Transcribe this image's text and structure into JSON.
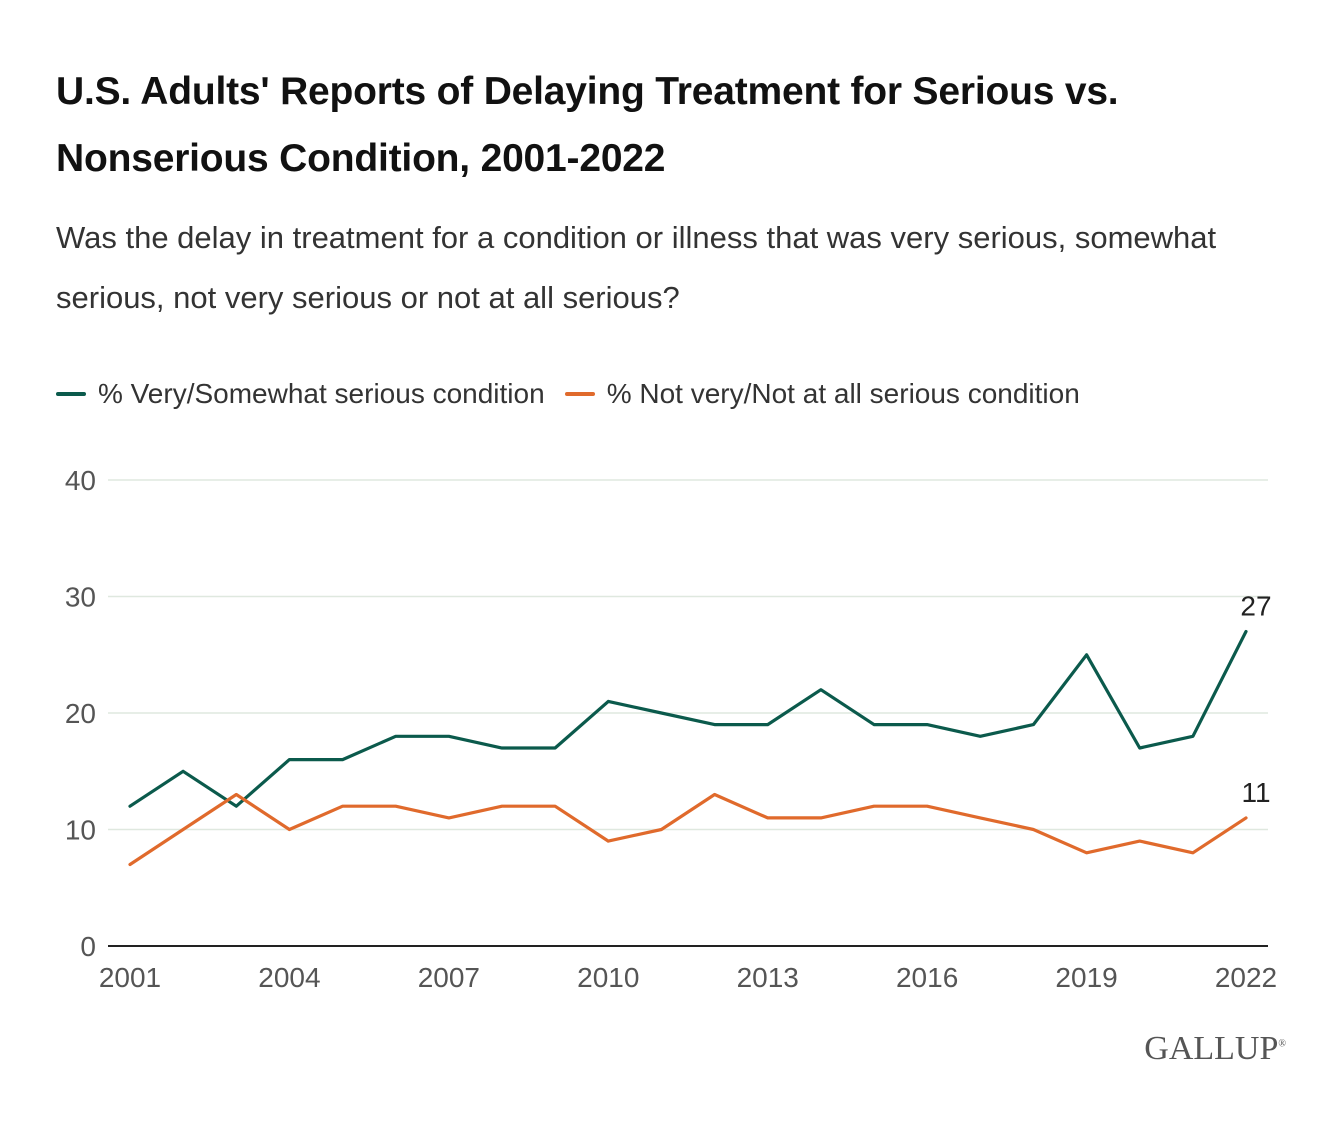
{
  "title": "U.S. Adults' Reports of Delaying Treatment for Serious vs. Nonserious Condition, 2001-2022",
  "subtitle": "Was the delay in treatment for a condition or illness that was very serious, somewhat serious, not very serious or not at all serious?",
  "logo": "GALLUP",
  "colors": {
    "serious": "#0b5a4c",
    "nonserious": "#e06a2c",
    "grid": "#dfe8df",
    "axis": "#222222",
    "tick": "#555555"
  },
  "chart_data": {
    "type": "line",
    "title": "U.S. Adults' Reports of Delaying Treatment for Serious vs. Nonserious Condition, 2001-2022",
    "x": [
      2001,
      2002,
      2003,
      2004,
      2005,
      2006,
      2007,
      2008,
      2009,
      2010,
      2011,
      2012,
      2013,
      2014,
      2015,
      2016,
      2017,
      2018,
      2019,
      2020,
      2021,
      2022
    ],
    "xticks": [
      "2001",
      "2004",
      "2007",
      "2010",
      "2013",
      "2016",
      "2019",
      "2022"
    ],
    "yticks": [
      "0",
      "10",
      "20",
      "30",
      "40"
    ],
    "ylim": [
      0,
      40
    ],
    "grid": true,
    "legend": "top-left",
    "series": [
      {
        "name": "% Very/Somewhat serious condition",
        "color": "#0b5a4c",
        "values": [
          12,
          15,
          12,
          16,
          16,
          18,
          18,
          17,
          17,
          21,
          20,
          19,
          19,
          22,
          19,
          19,
          18,
          19,
          25,
          17,
          18,
          27
        ],
        "end_label": "27"
      },
      {
        "name": "% Not very/Not at all serious condition",
        "color": "#e06a2c",
        "values": [
          7,
          10,
          13,
          10,
          12,
          12,
          11,
          12,
          12,
          9,
          10,
          13,
          11,
          11,
          12,
          12,
          11,
          10,
          8,
          9,
          8,
          11
        ],
        "end_label": "11"
      }
    ]
  }
}
